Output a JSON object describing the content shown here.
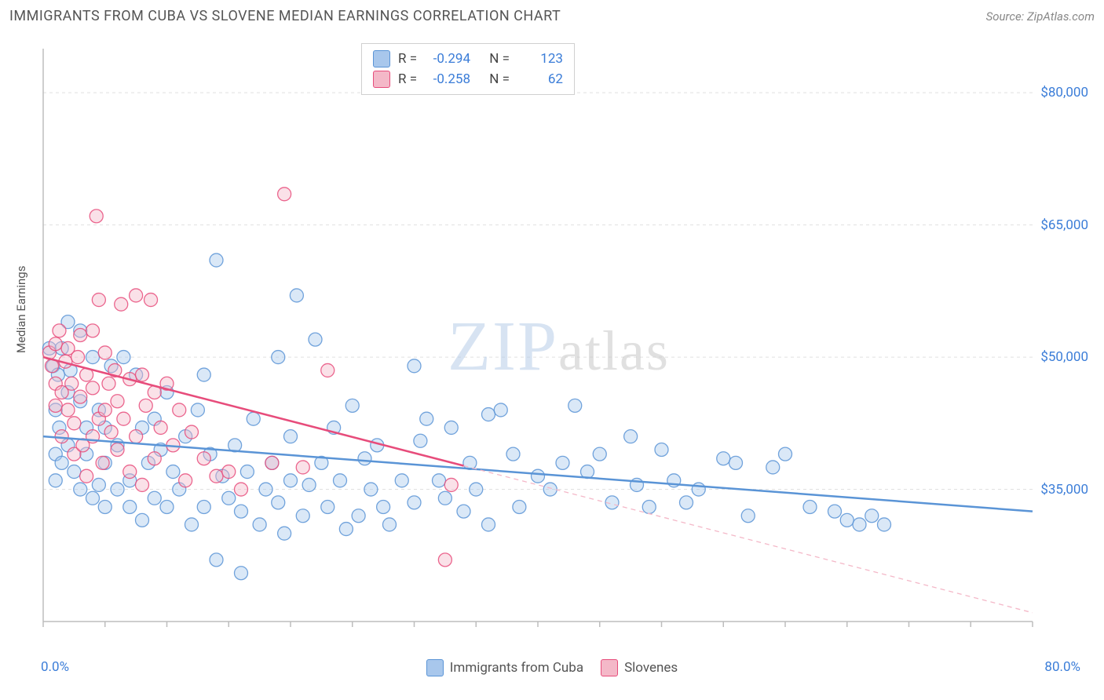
{
  "title": "IMMIGRANTS FROM CUBA VS SLOVENE MEDIAN EARNINGS CORRELATION CHART",
  "source": "Source: ZipAtlas.com",
  "ylabel": "Median Earnings",
  "watermark": {
    "a": "ZIP",
    "b": "atlas"
  },
  "chart": {
    "type": "scatter",
    "xlim": [
      0,
      80
    ],
    "ylim": [
      20000,
      85000
    ],
    "xmin_label": "0.0%",
    "xmax_label": "80.0%",
    "ytick_labels": [
      "$35,000",
      "$50,000",
      "$65,000",
      "$80,000"
    ],
    "ytick_values": [
      35000,
      50000,
      65000,
      80000
    ],
    "xtick_values": [
      0,
      5,
      10,
      15,
      20,
      25,
      30,
      35,
      40,
      45,
      50,
      55,
      60,
      65,
      70,
      75,
      80
    ],
    "grid_color": "#e0e0e0",
    "axis_color": "#bdbdbd",
    "background_color": "#ffffff",
    "marker_radius": 8.5,
    "marker_opacity": 0.42,
    "marker_stroke_opacity": 0.85,
    "line_width": 2.5
  },
  "series": [
    {
      "name": "Immigrants from Cuba",
      "color_fill": "#a8c7ec",
      "color_stroke": "#5a94d6",
      "r_label": "R =",
      "r_value": "-0.294",
      "n_label": "N =",
      "n_value": "123",
      "trend": {
        "x1": 0,
        "y1": 41000,
        "x2": 80,
        "y2": 32500,
        "solid_until_x": 80
      },
      "points": [
        [
          0.5,
          51000
        ],
        [
          0.8,
          49000
        ],
        [
          1,
          44000
        ],
        [
          1,
          39000
        ],
        [
          1,
          36000
        ],
        [
          1.2,
          48000
        ],
        [
          1.3,
          42000
        ],
        [
          1.5,
          51000
        ],
        [
          1.5,
          38000
        ],
        [
          2,
          54000
        ],
        [
          2,
          46000
        ],
        [
          2,
          40000
        ],
        [
          2.2,
          48500
        ],
        [
          2.5,
          37000
        ],
        [
          3,
          53000
        ],
        [
          3,
          45000
        ],
        [
          3,
          35000
        ],
        [
          3.5,
          42000
        ],
        [
          3.5,
          39000
        ],
        [
          4,
          50000
        ],
        [
          4,
          34000
        ],
        [
          4.5,
          44000
        ],
        [
          4.5,
          35500
        ],
        [
          5,
          42000
        ],
        [
          5,
          38000
        ],
        [
          5,
          33000
        ],
        [
          5.5,
          49000
        ],
        [
          6,
          40000
        ],
        [
          6,
          35000
        ],
        [
          6.5,
          50000
        ],
        [
          7,
          36000
        ],
        [
          7,
          33000
        ],
        [
          7.5,
          48000
        ],
        [
          8,
          42000
        ],
        [
          8,
          31500
        ],
        [
          8.5,
          38000
        ],
        [
          9,
          43000
        ],
        [
          9,
          34000
        ],
        [
          9.5,
          39500
        ],
        [
          10,
          46000
        ],
        [
          10,
          33000
        ],
        [
          10.5,
          37000
        ],
        [
          11,
          35000
        ],
        [
          11.5,
          41000
        ],
        [
          12,
          31000
        ],
        [
          12.5,
          44000
        ],
        [
          13,
          48000
        ],
        [
          13,
          33000
        ],
        [
          13.5,
          39000
        ],
        [
          14,
          61000
        ],
        [
          14,
          27000
        ],
        [
          14.5,
          36500
        ],
        [
          15,
          34000
        ],
        [
          15.5,
          40000
        ],
        [
          16,
          32500
        ],
        [
          16,
          25500
        ],
        [
          16.5,
          37000
        ],
        [
          17,
          43000
        ],
        [
          17.5,
          31000
        ],
        [
          18,
          35000
        ],
        [
          18.5,
          38000
        ],
        [
          19,
          50000
        ],
        [
          19,
          33500
        ],
        [
          19.5,
          30000
        ],
        [
          20,
          41000
        ],
        [
          20,
          36000
        ],
        [
          20.5,
          57000
        ],
        [
          21,
          32000
        ],
        [
          21.5,
          35500
        ],
        [
          22,
          52000
        ],
        [
          22.5,
          38000
        ],
        [
          23,
          33000
        ],
        [
          23.5,
          42000
        ],
        [
          24,
          36000
        ],
        [
          24.5,
          30500
        ],
        [
          25,
          44500
        ],
        [
          25.5,
          32000
        ],
        [
          26,
          38500
        ],
        [
          26.5,
          35000
        ],
        [
          27,
          40000
        ],
        [
          27.5,
          33000
        ],
        [
          28,
          31000
        ],
        [
          29,
          36000
        ],
        [
          30,
          49000
        ],
        [
          30,
          33500
        ],
        [
          30.5,
          40500
        ],
        [
          31,
          43000
        ],
        [
          32,
          36000
        ],
        [
          32.5,
          34000
        ],
        [
          33,
          42000
        ],
        [
          34,
          32500
        ],
        [
          34.5,
          38000
        ],
        [
          35,
          35000
        ],
        [
          36,
          43500
        ],
        [
          36,
          31000
        ],
        [
          37,
          44000
        ],
        [
          38,
          39000
        ],
        [
          38.5,
          33000
        ],
        [
          40,
          36500
        ],
        [
          41,
          35000
        ],
        [
          42,
          38000
        ],
        [
          43,
          44500
        ],
        [
          44,
          37000
        ],
        [
          45,
          39000
        ],
        [
          46,
          33500
        ],
        [
          47.5,
          41000
        ],
        [
          48,
          35500
        ],
        [
          49,
          33000
        ],
        [
          50,
          39500
        ],
        [
          51,
          36000
        ],
        [
          52,
          33500
        ],
        [
          53,
          35000
        ],
        [
          55,
          38500
        ],
        [
          56,
          38000
        ],
        [
          57,
          32000
        ],
        [
          59,
          37500
        ],
        [
          60,
          39000
        ],
        [
          62,
          33000
        ],
        [
          64,
          32500
        ],
        [
          65,
          31500
        ],
        [
          66,
          31000
        ],
        [
          67,
          32000
        ],
        [
          68,
          31000
        ]
      ]
    },
    {
      "name": "Slovenes",
      "color_fill": "#f4b8c8",
      "color_stroke": "#e74c7b",
      "r_label": "R =",
      "r_value": "-0.258",
      "n_label": "N =",
      "n_value": "62",
      "trend": {
        "x1": 0,
        "y1": 50000,
        "x2": 80,
        "y2": 21000,
        "solid_until_x": 34
      },
      "points": [
        [
          0.5,
          50500
        ],
        [
          0.7,
          49000
        ],
        [
          1,
          51500
        ],
        [
          1,
          47000
        ],
        [
          1,
          44500
        ],
        [
          1.3,
          53000
        ],
        [
          1.5,
          46000
        ],
        [
          1.5,
          41000
        ],
        [
          1.8,
          49500
        ],
        [
          2,
          51000
        ],
        [
          2,
          44000
        ],
        [
          2.3,
          47000
        ],
        [
          2.5,
          42500
        ],
        [
          2.5,
          39000
        ],
        [
          2.8,
          50000
        ],
        [
          3,
          52500
        ],
        [
          3,
          45500
        ],
        [
          3.2,
          40000
        ],
        [
          3.5,
          48000
        ],
        [
          3.5,
          36500
        ],
        [
          4,
          53000
        ],
        [
          4,
          46500
        ],
        [
          4,
          41000
        ],
        [
          4.3,
          66000
        ],
        [
          4.5,
          56500
        ],
        [
          4.5,
          43000
        ],
        [
          4.8,
          38000
        ],
        [
          5,
          50500
        ],
        [
          5,
          44000
        ],
        [
          5.3,
          47000
        ],
        [
          5.5,
          41500
        ],
        [
          5.8,
          48500
        ],
        [
          6,
          45000
        ],
        [
          6,
          39500
        ],
        [
          6.3,
          56000
        ],
        [
          6.5,
          43000
        ],
        [
          7,
          47500
        ],
        [
          7,
          37000
        ],
        [
          7.5,
          57000
        ],
        [
          7.5,
          41000
        ],
        [
          8,
          48000
        ],
        [
          8,
          35500
        ],
        [
          8.3,
          44500
        ],
        [
          8.7,
          56500
        ],
        [
          9,
          46000
        ],
        [
          9,
          38500
        ],
        [
          9.5,
          42000
        ],
        [
          10,
          47000
        ],
        [
          10.5,
          40000
        ],
        [
          11,
          44000
        ],
        [
          11.5,
          36000
        ],
        [
          12,
          41500
        ],
        [
          13,
          38500
        ],
        [
          14,
          36500
        ],
        [
          15,
          37000
        ],
        [
          16,
          35000
        ],
        [
          18.5,
          38000
        ],
        [
          19.5,
          68500
        ],
        [
          21,
          37500
        ],
        [
          23,
          48500
        ],
        [
          32.5,
          27000
        ],
        [
          33,
          35500
        ]
      ]
    }
  ],
  "bottom_legend": {
    "s1": "Immigrants from Cuba",
    "s2": "Slovenes"
  }
}
